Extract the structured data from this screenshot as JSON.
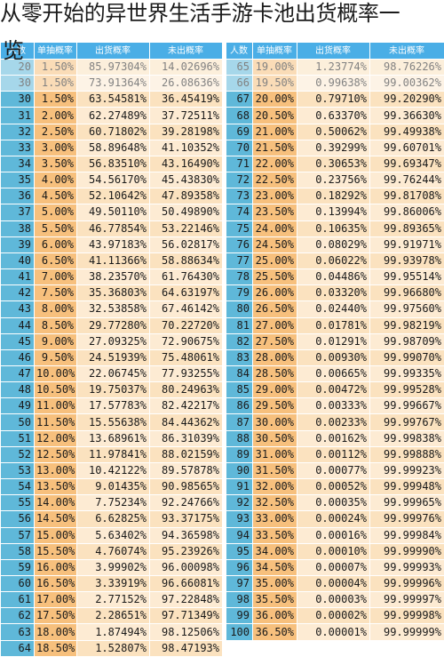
{
  "title_line1": "从零开始的异世界生活手游卡池出货概率一",
  "title_line2": "览",
  "headers": [
    "人数",
    "单抽概率",
    "出货概率",
    "未出概率",
    "人数",
    "单抽概率",
    "出货概率",
    "未出概率"
  ],
  "rows": [
    {
      "l": [
        "20",
        "1.50%",
        "85.97304%",
        "14.02696%"
      ],
      "r": [
        "65",
        "19.00%",
        "1.23774%",
        "98.76226%"
      ]
    },
    {
      "l": [
        "30",
        "1.50%",
        "73.91364%",
        "26.08636%"
      ],
      "r": [
        "66",
        "19.50%",
        "0.99638%",
        "99.00362%"
      ]
    },
    {
      "l": [
        "30",
        "1.50%",
        "63.54581%",
        "36.45419%"
      ],
      "r": [
        "67",
        "20.00%",
        "0.79710%",
        "99.20290%"
      ]
    },
    {
      "l": [
        "31",
        "2.00%",
        "62.27489%",
        "37.72511%"
      ],
      "r": [
        "68",
        "20.50%",
        "0.63370%",
        "99.36630%"
      ]
    },
    {
      "l": [
        "32",
        "2.50%",
        "60.71802%",
        "39.28198%"
      ],
      "r": [
        "69",
        "21.00%",
        "0.50062%",
        "99.49938%"
      ]
    },
    {
      "l": [
        "33",
        "3.00%",
        "58.89648%",
        "41.10352%"
      ],
      "r": [
        "70",
        "21.50%",
        "0.39299%",
        "99.60701%"
      ]
    },
    {
      "l": [
        "34",
        "3.50%",
        "56.83510%",
        "43.16490%"
      ],
      "r": [
        "71",
        "22.00%",
        "0.30653%",
        "99.69347%"
      ]
    },
    {
      "l": [
        "35",
        "4.00%",
        "54.56170%",
        "45.43830%"
      ],
      "r": [
        "72",
        "22.50%",
        "0.23756%",
        "99.76244%"
      ]
    },
    {
      "l": [
        "36",
        "4.50%",
        "52.10642%",
        "47.89358%"
      ],
      "r": [
        "73",
        "23.00%",
        "0.18292%",
        "99.81708%"
      ]
    },
    {
      "l": [
        "37",
        "5.00%",
        "49.50110%",
        "50.49890%"
      ],
      "r": [
        "74",
        "23.50%",
        "0.13994%",
        "99.86006%"
      ]
    },
    {
      "l": [
        "38",
        "5.50%",
        "46.77854%",
        "53.22146%"
      ],
      "r": [
        "75",
        "24.00%",
        "0.10635%",
        "99.89365%"
      ]
    },
    {
      "l": [
        "39",
        "6.00%",
        "43.97183%",
        "56.02817%"
      ],
      "r": [
        "76",
        "24.50%",
        "0.08029%",
        "99.91971%"
      ]
    },
    {
      "l": [
        "40",
        "6.50%",
        "41.11366%",
        "58.88634%"
      ],
      "r": [
        "77",
        "25.00%",
        "0.06022%",
        "99.93978%"
      ]
    },
    {
      "l": [
        "41",
        "7.00%",
        "38.23570%",
        "61.76430%"
      ],
      "r": [
        "78",
        "25.50%",
        "0.04486%",
        "99.95514%"
      ]
    },
    {
      "l": [
        "42",
        "7.50%",
        "35.36803%",
        "64.63197%"
      ],
      "r": [
        "79",
        "26.00%",
        "0.03320%",
        "99.96680%"
      ]
    },
    {
      "l": [
        "43",
        "8.00%",
        "32.53858%",
        "67.46142%"
      ],
      "r": [
        "80",
        "26.50%",
        "0.02440%",
        "99.97560%"
      ]
    },
    {
      "l": [
        "44",
        "8.50%",
        "29.77280%",
        "70.22720%"
      ],
      "r": [
        "81",
        "27.00%",
        "0.01781%",
        "99.98219%"
      ]
    },
    {
      "l": [
        "45",
        "9.00%",
        "27.09325%",
        "72.90675%"
      ],
      "r": [
        "82",
        "27.50%",
        "0.01291%",
        "99.98709%"
      ]
    },
    {
      "l": [
        "46",
        "9.50%",
        "24.51939%",
        "75.48061%"
      ],
      "r": [
        "83",
        "28.00%",
        "0.00930%",
        "99.99070%"
      ]
    },
    {
      "l": [
        "47",
        "10.00%",
        "22.06745%",
        "77.93255%"
      ],
      "r": [
        "84",
        "28.50%",
        "0.00665%",
        "99.99335%"
      ]
    },
    {
      "l": [
        "48",
        "10.50%",
        "19.75037%",
        "80.24963%"
      ],
      "r": [
        "85",
        "29.00%",
        "0.00472%",
        "99.99528%"
      ]
    },
    {
      "l": [
        "49",
        "11.00%",
        "17.57783%",
        "82.42217%"
      ],
      "r": [
        "86",
        "29.50%",
        "0.00333%",
        "99.99667%"
      ]
    },
    {
      "l": [
        "50",
        "11.50%",
        "15.55638%",
        "84.44362%"
      ],
      "r": [
        "87",
        "30.00%",
        "0.00233%",
        "99.99767%"
      ]
    },
    {
      "l": [
        "51",
        "12.00%",
        "13.68961%",
        "86.31039%"
      ],
      "r": [
        "88",
        "30.50%",
        "0.00162%",
        "99.99838%"
      ]
    },
    {
      "l": [
        "52",
        "12.50%",
        "11.97841%",
        "88.02159%"
      ],
      "r": [
        "89",
        "31.00%",
        "0.00112%",
        "99.99888%"
      ]
    },
    {
      "l": [
        "53",
        "13.00%",
        "10.42122%",
        "89.57878%"
      ],
      "r": [
        "90",
        "31.50%",
        "0.00077%",
        "99.99923%"
      ]
    },
    {
      "l": [
        "54",
        "13.50%",
        "9.01435%",
        "90.98565%"
      ],
      "r": [
        "91",
        "32.00%",
        "0.00052%",
        "99.99948%"
      ]
    },
    {
      "l": [
        "55",
        "14.00%",
        "7.75234%",
        "92.24766%"
      ],
      "r": [
        "92",
        "32.50%",
        "0.00035%",
        "99.99965%"
      ]
    },
    {
      "l": [
        "56",
        "14.50%",
        "6.62825%",
        "93.37175%"
      ],
      "r": [
        "93",
        "33.00%",
        "0.00024%",
        "99.99976%"
      ]
    },
    {
      "l": [
        "57",
        "15.00%",
        "5.63402%",
        "94.36598%"
      ],
      "r": [
        "94",
        "33.50%",
        "0.00016%",
        "99.99984%"
      ]
    },
    {
      "l": [
        "58",
        "15.50%",
        "4.76074%",
        "95.23926%"
      ],
      "r": [
        "95",
        "34.00%",
        "0.00010%",
        "99.99990%"
      ]
    },
    {
      "l": [
        "59",
        "16.00%",
        "3.99902%",
        "96.00098%"
      ],
      "r": [
        "96",
        "34.50%",
        "0.00007%",
        "99.99993%"
      ]
    },
    {
      "l": [
        "60",
        "16.50%",
        "3.33919%",
        "96.66081%"
      ],
      "r": [
        "97",
        "35.00%",
        "0.00004%",
        "99.99996%"
      ]
    },
    {
      "l": [
        "61",
        "17.00%",
        "2.77152%",
        "97.22848%"
      ],
      "r": [
        "98",
        "35.50%",
        "0.00003%",
        "99.99997%"
      ]
    },
    {
      "l": [
        "62",
        "17.50%",
        "2.28651%",
        "97.71349%"
      ],
      "r": [
        "99",
        "36.00%",
        "0.00002%",
        "99.99998%"
      ]
    },
    {
      "l": [
        "63",
        "18.00%",
        "1.87494%",
        "98.12506%"
      ],
      "r": [
        "100",
        "36.50%",
        "0.00001%",
        "99.99999%"
      ]
    },
    {
      "l": [
        "64",
        "18.50%",
        "1.52807%",
        "98.47193%"
      ],
      "r": [
        "",
        "",
        "",
        ""
      ]
    }
  ],
  "colors": {
    "index": "#5fb8d9",
    "rate": "#f7c07d",
    "value": "#fbe2bf",
    "header": "#4aaee6"
  }
}
